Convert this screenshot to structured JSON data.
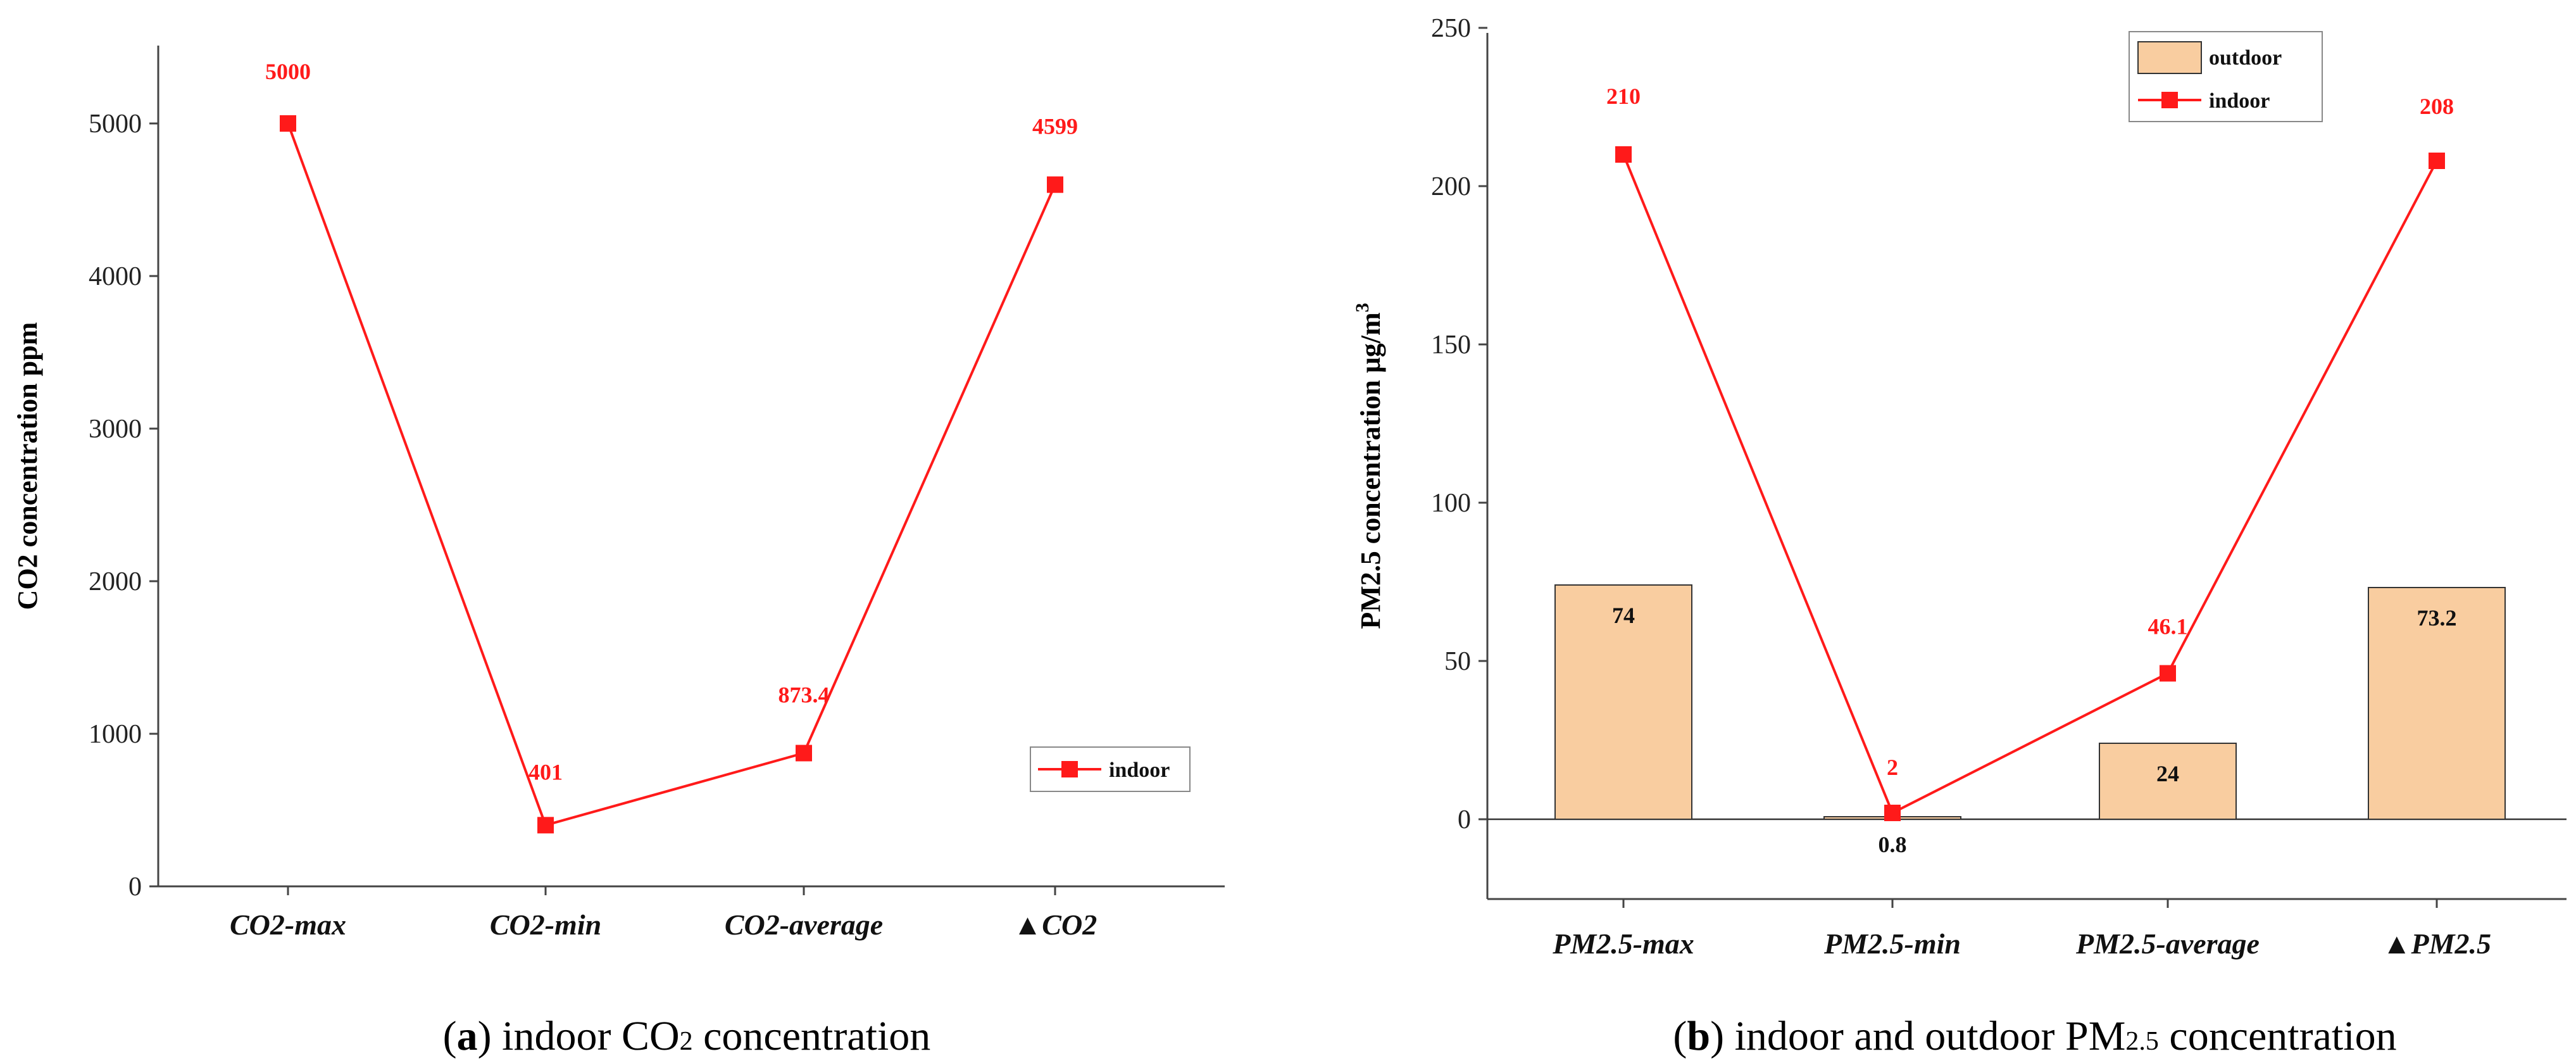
{
  "chart_data": [
    {
      "type": "line",
      "categories": [
        "CO2-max",
        "CO2-min",
        "CO2-average",
        "▲CO2"
      ],
      "series": [
        {
          "name": "indoor",
          "values": [
            5000,
            401,
            873.4,
            4599
          ],
          "labels": [
            "5000",
            "401",
            "873.4",
            "4599"
          ]
        }
      ],
      "xlabel": "",
      "ylabel": "CO2 concentration  ppm",
      "ylim": [
        0,
        5500
      ],
      "yticks": [
        0,
        1000,
        2000,
        3000,
        4000,
        5000
      ],
      "legend_position": "bottom-right",
      "colors": {
        "line": "#ff1a1a",
        "axis": "#444444"
      },
      "caption": {
        "letter": "a",
        "text": " indoor CO",
        "sub": "2",
        "tail": " concentration"
      }
    },
    {
      "type": "bar+line",
      "categories": [
        "PM2.5-max",
        "PM2.5-min",
        "PM2.5-average",
        "▲PM2.5"
      ],
      "series": [
        {
          "name": "outdoor",
          "kind": "bar",
          "values": [
            74,
            0.8,
            24,
            73.2
          ],
          "labels": [
            "74",
            "0.8",
            "24",
            "73.2"
          ]
        },
        {
          "name": "indoor",
          "kind": "line",
          "values": [
            210,
            2,
            46.1,
            208
          ],
          "labels": [
            "210",
            "2",
            "46.1",
            "208"
          ]
        }
      ],
      "xlabel": "",
      "ylabel": "PM2.5 concentration  μg/m",
      "ylabel_sup": "3",
      "ylim": [
        -25,
        250
      ],
      "yticks": [
        0,
        50,
        100,
        150,
        200,
        250
      ],
      "legend_position": "top-right",
      "colors": {
        "line": "#ff1a1a",
        "bar": "#f9cda0",
        "bar_edge": "#333333",
        "axis": "#444444"
      },
      "caption": {
        "letter": "b",
        "text": " indoor and outdoor PM",
        "sub": "2.5",
        "tail": " concentration"
      }
    }
  ]
}
